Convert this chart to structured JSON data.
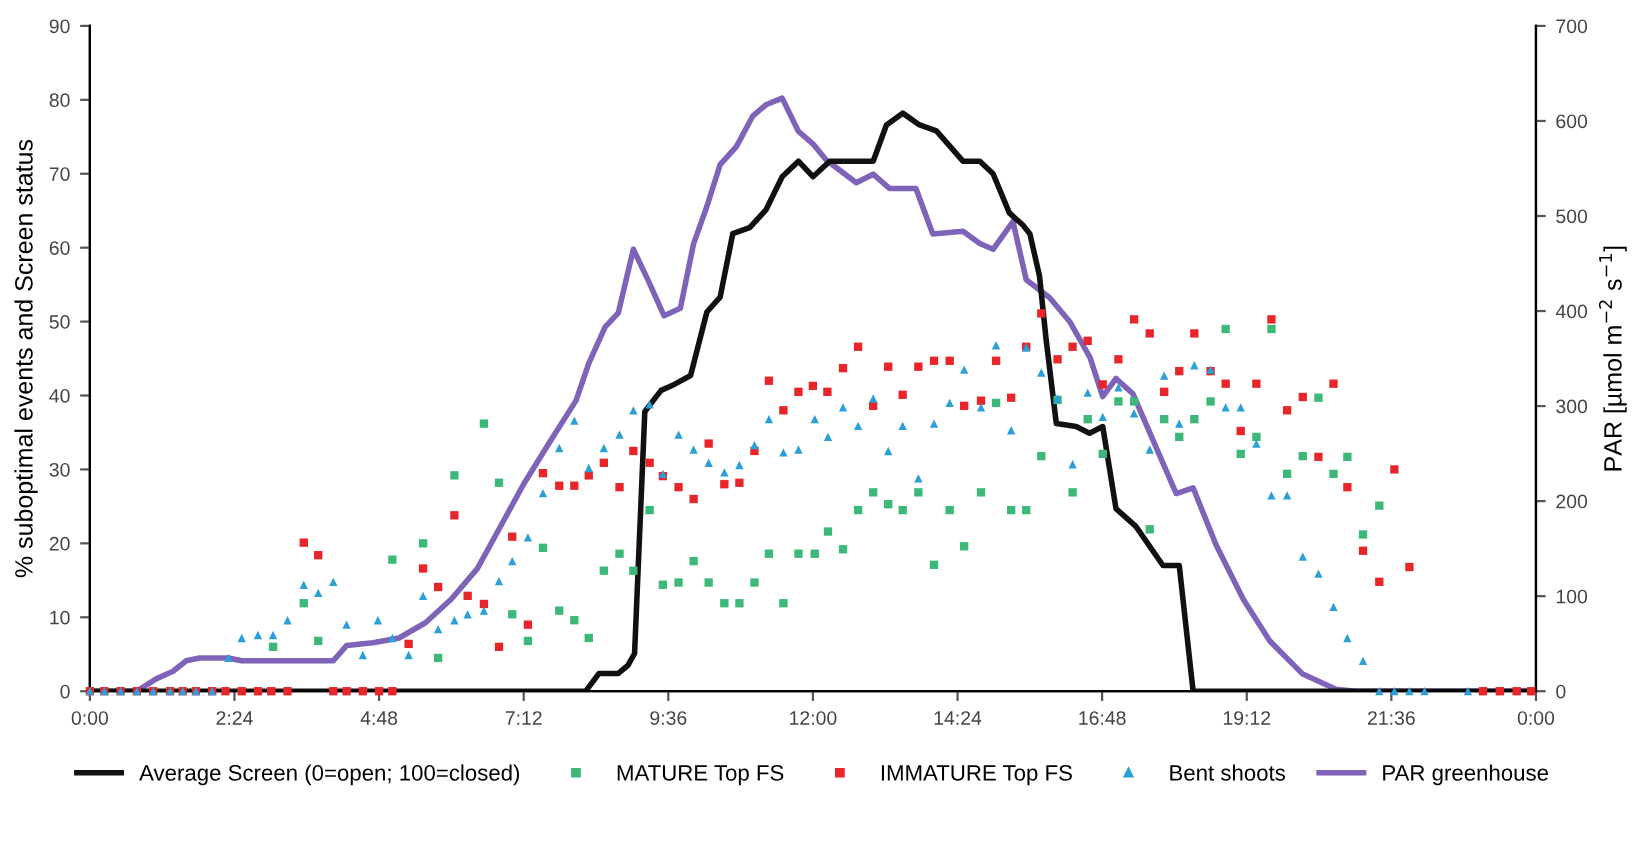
{
  "chart_data": {
    "type": "line",
    "ylabel": "% suboptimal events and Screen status",
    "y2label": "PAR [µmol m$^{−2}$ s$^{−1}$]",
    "xlim": [
      0,
      24
    ],
    "xticks": [
      {
        "value": 0,
        "label": "0:00"
      },
      {
        "value": 2.4,
        "label": "2:24"
      },
      {
        "value": 4.8,
        "label": "4:48"
      },
      {
        "value": 7.2,
        "label": "7:12"
      },
      {
        "value": 9.6,
        "label": "9:36"
      },
      {
        "value": 12,
        "label": "12:00"
      },
      {
        "value": 14.4,
        "label": "14:24"
      },
      {
        "value": 16.8,
        "label": "16:48"
      },
      {
        "value": 19.2,
        "label": "19:12"
      },
      {
        "value": 21.6,
        "label": "21:36"
      },
      {
        "value": 24,
        "label": "0:00"
      }
    ],
    "ylim": [
      0,
      90
    ],
    "yticks": [
      0,
      10,
      20,
      30,
      40,
      50,
      60,
      70,
      80,
      90
    ],
    "y2lim": [
      0,
      700
    ],
    "y2ticks": [
      0,
      100,
      200,
      300,
      400,
      500,
      600,
      700
    ],
    "grid": false,
    "legend": "bottom",
    "line_style": "solid",
    "series": [
      {
        "name": "Average Screen (0=open; 100=closed)",
        "color": "#111111",
        "marker": "none",
        "x": [
          0,
          8.23,
          8.45,
          8.77,
          8.93,
          9.04,
          9.21,
          9.32,
          9.48,
          9.7,
          9.97,
          10.24,
          10.46,
          10.67,
          10.95,
          11.22,
          11.49,
          11.76,
          12.0,
          12.28,
          13.0,
          13.22,
          13.49,
          13.77,
          14.05,
          14.49,
          14.77,
          14.99,
          15.26,
          15.48,
          15.6,
          15.76,
          15.87,
          16.04,
          16.37,
          16.59,
          16.81,
          17.03,
          17.36,
          17.81,
          18.08,
          18.31,
          24
        ],
        "values": [
          0,
          0,
          2.4,
          2.4,
          3.5,
          5.1,
          37.8,
          39,
          40.7,
          41.5,
          42.7,
          51.3,
          53.3,
          61.9,
          62.7,
          65.1,
          69.6,
          71.7,
          69.6,
          71.7,
          71.7,
          76.6,
          78.2,
          76.6,
          75.8,
          71.7,
          71.7,
          70.0,
          64.7,
          63.1,
          61.9,
          56.2,
          47.6,
          36.2,
          35.8,
          34.9,
          35.8,
          24.7,
          22.3,
          17.0,
          17.0,
          0,
          0
        ]
      },
      {
        "name": "MATURE Top FS",
        "type": "scatter",
        "color": "#3cb878",
        "marker": "square",
        "x": [
          3.04,
          3.55,
          3.79,
          5.02,
          5.53,
          5.78,
          6.05,
          6.54,
          6.79,
          7.01,
          7.27,
          7.52,
          7.79,
          8.04,
          8.28,
          8.53,
          8.79,
          9.02,
          9.29,
          9.51,
          9.77,
          10.02,
          10.27,
          10.53,
          10.78,
          11.03,
          11.27,
          11.51,
          11.76,
          12.03,
          12.25,
          12.5,
          12.75,
          13.0,
          13.25,
          13.49,
          13.75,
          14.01,
          14.27,
          14.51,
          14.79,
          15.04,
          15.29,
          15.54,
          15.79,
          16.06,
          16.31,
          16.56,
          16.81,
          17.07,
          17.33,
          17.59,
          17.83,
          18.08,
          18.33,
          18.6,
          18.85,
          19.1,
          19.36,
          19.61,
          19.87,
          20.13,
          20.39,
          20.64,
          20.87,
          21.13,
          21.4
        ],
        "values": [
          6.0,
          11.9,
          6.8,
          17.8,
          20.0,
          4.5,
          29.2,
          36.2,
          28.2,
          10.4,
          6.8,
          19.4,
          10.9,
          9.6,
          7.2,
          16.3,
          18.6,
          16.3,
          24.5,
          14.4,
          14.7,
          17.6,
          14.7,
          11.9,
          11.9,
          14.7,
          18.6,
          11.9,
          18.6,
          18.6,
          21.6,
          19.2,
          24.5,
          26.9,
          25.3,
          24.5,
          26.9,
          17.1,
          24.5,
          19.6,
          26.9,
          39.0,
          24.5,
          24.5,
          31.8,
          39.4,
          26.9,
          36.8,
          32.1,
          39.2,
          39.2,
          21.9,
          36.8,
          34.4,
          36.8,
          39.2,
          49.0,
          32.1,
          34.4,
          49.0,
          29.4,
          31.8,
          39.7,
          29.4,
          31.7,
          21.2,
          25.1
        ]
      },
      {
        "name": "IMMATURE Top FS",
        "type": "scatter",
        "color": "#e8262a",
        "marker": "square",
        "x": [
          0,
          0.24,
          0.51,
          0.78,
          1.05,
          1.33,
          1.54,
          1.76,
          2.03,
          2.25,
          2.52,
          2.79,
          3.01,
          3.28,
          3.55,
          3.79,
          4.04,
          4.26,
          4.53,
          4.8,
          5.02,
          5.29,
          5.53,
          5.78,
          6.05,
          6.27,
          6.54,
          6.79,
          7.01,
          7.27,
          7.52,
          7.79,
          8.04,
          8.28,
          8.53,
          8.79,
          9.02,
          9.29,
          9.51,
          9.77,
          10.02,
          10.27,
          10.53,
          10.78,
          11.03,
          11.27,
          11.51,
          11.76,
          12.0,
          12.24,
          12.5,
          12.75,
          13.0,
          13.25,
          13.49,
          13.75,
          14.01,
          14.27,
          14.51,
          14.79,
          15.04,
          15.29,
          15.54,
          15.79,
          16.06,
          16.31,
          16.56,
          16.81,
          17.07,
          17.33,
          17.59,
          17.83,
          18.08,
          18.33,
          18.6,
          18.85,
          19.1,
          19.36,
          19.61,
          19.87,
          20.13,
          20.39,
          20.64,
          20.87,
          21.13,
          21.4,
          21.65,
          21.9,
          23.12,
          23.4,
          23.68,
          23.92
        ],
        "values": [
          0,
          0,
          0,
          0,
          0,
          0,
          0,
          0,
          0,
          0,
          0,
          0,
          0,
          0,
          20.1,
          18.4,
          0,
          0,
          0,
          0,
          0,
          6.4,
          16.6,
          14.1,
          23.8,
          12.9,
          11.8,
          6.0,
          20.9,
          9.0,
          29.5,
          27.8,
          27.8,
          29.2,
          30.9,
          27.6,
          32.5,
          30.9,
          29.1,
          27.6,
          26.0,
          33.5,
          28.0,
          28.2,
          32.5,
          42.0,
          38.0,
          40.5,
          41.3,
          40.5,
          43.7,
          46.6,
          38.6,
          43.9,
          40.1,
          43.9,
          44.7,
          44.7,
          38.6,
          39.3,
          44.7,
          39.7,
          46.6,
          51.1,
          44.9,
          46.6,
          47.4,
          41.5,
          44.9,
          50.3,
          48.4,
          40.5,
          43.3,
          48.4,
          43.3,
          41.6,
          35.2,
          41.6,
          50.3,
          38.0,
          39.8,
          31.7,
          41.6,
          27.6,
          19.0,
          14.8,
          30.0,
          16.8,
          0,
          0,
          0,
          0
        ]
      },
      {
        "name": "Bent shoots",
        "type": "scatter",
        "color": "#2a9fd8",
        "marker": "triangle",
        "x": [
          0,
          0.24,
          0.51,
          0.78,
          1.05,
          1.33,
          1.54,
          1.76,
          2.03,
          2.3,
          2.52,
          2.79,
          3.04,
          3.28,
          3.55,
          3.79,
          4.04,
          4.26,
          4.53,
          4.78,
          5.02,
          5.29,
          5.53,
          5.78,
          6.05,
          6.27,
          6.54,
          6.79,
          7.01,
          7.27,
          7.52,
          7.79,
          8.04,
          8.28,
          8.53,
          8.79,
          9.02,
          9.29,
          9.51,
          9.77,
          10.02,
          10.27,
          10.53,
          10.78,
          11.03,
          11.27,
          11.51,
          11.76,
          12.03,
          12.25,
          12.5,
          12.75,
          13.0,
          13.25,
          13.49,
          13.75,
          14.01,
          14.27,
          14.51,
          14.79,
          15.04,
          15.29,
          15.54,
          15.79,
          16.06,
          16.31,
          16.56,
          16.81,
          17.07,
          17.33,
          17.59,
          17.83,
          18.08,
          18.33,
          18.6,
          18.85,
          19.1,
          19.36,
          19.61,
          19.87,
          20.13,
          20.39,
          20.64,
          20.87,
          21.13,
          21.4,
          21.65,
          21.9,
          22.15,
          22.87
        ],
        "values": [
          0,
          0,
          0,
          0,
          0,
          0,
          0,
          0,
          0,
          4.5,
          7.2,
          7.6,
          7.6,
          9.6,
          14.4,
          13.3,
          14.8,
          9.0,
          4.9,
          9.6,
          7.2,
          4.9,
          12.9,
          8.4,
          9.6,
          10.4,
          10.9,
          14.9,
          17.6,
          20.8,
          26.8,
          32.9,
          36.6,
          30.2,
          32.9,
          34.7,
          38.0,
          38.8,
          29.4,
          34.7,
          32.7,
          30.9,
          29.6,
          30.6,
          33.3,
          36.8,
          32.3,
          32.7,
          36.8,
          34.4,
          38.4,
          35.9,
          39.6,
          32.5,
          35.9,
          28.8,
          36.2,
          39.0,
          43.5,
          38.4,
          46.8,
          35.3,
          46.5,
          43.1,
          39.6,
          30.7,
          40.4,
          37.1,
          41.1,
          37.6,
          32.7,
          42.7,
          36.2,
          44.1,
          43.5,
          38.4,
          38.4,
          33.5,
          26.5,
          26.5,
          18.2,
          15.9,
          11.4,
          7.2,
          4.1,
          0,
          0,
          0,
          0,
          0
        ]
      },
      {
        "name": "PAR greenhouse",
        "axis": "y2",
        "color": "#7f63b8",
        "marker": "none",
        "x": [
          0,
          0.78,
          1.1,
          1.38,
          1.6,
          1.82,
          2.3,
          2.52,
          4.04,
          4.26,
          4.7,
          5.13,
          5.57,
          6.0,
          6.43,
          6.76,
          7.2,
          7.63,
          8.07,
          8.28,
          8.55,
          8.77,
          9.02,
          9.26,
          9.53,
          9.8,
          10.02,
          10.24,
          10.46,
          10.73,
          11.0,
          11.22,
          11.49,
          11.76,
          12.0,
          12.22,
          12.72,
          13.0,
          13.27,
          13.71,
          13.99,
          14.49,
          14.77,
          14.99,
          15.32,
          15.54,
          15.93,
          16.26,
          16.6,
          16.81,
          17.03,
          17.31,
          17.7,
          18.03,
          18.31,
          18.69,
          19.14,
          19.58,
          20.13,
          20.68,
          21.0,
          24
        ],
        "values": [
          0,
          0,
          13,
          21,
          32,
          35,
          35,
          32,
          32,
          48,
          51,
          56,
          72,
          97,
          129,
          167,
          218,
          262,
          306,
          345,
          383,
          398,
          465,
          433,
          395,
          403,
          471,
          510,
          554,
          573,
          605,
          617,
          624,
          589,
          576,
          559,
          535,
          544,
          529,
          529,
          481,
          484,
          471,
          465,
          494,
          433,
          414,
          389,
          351,
          310,
          329,
          313,
          256,
          208,
          214,
          154,
          97,
          53,
          18,
          2,
          0,
          0
        ]
      }
    ]
  }
}
